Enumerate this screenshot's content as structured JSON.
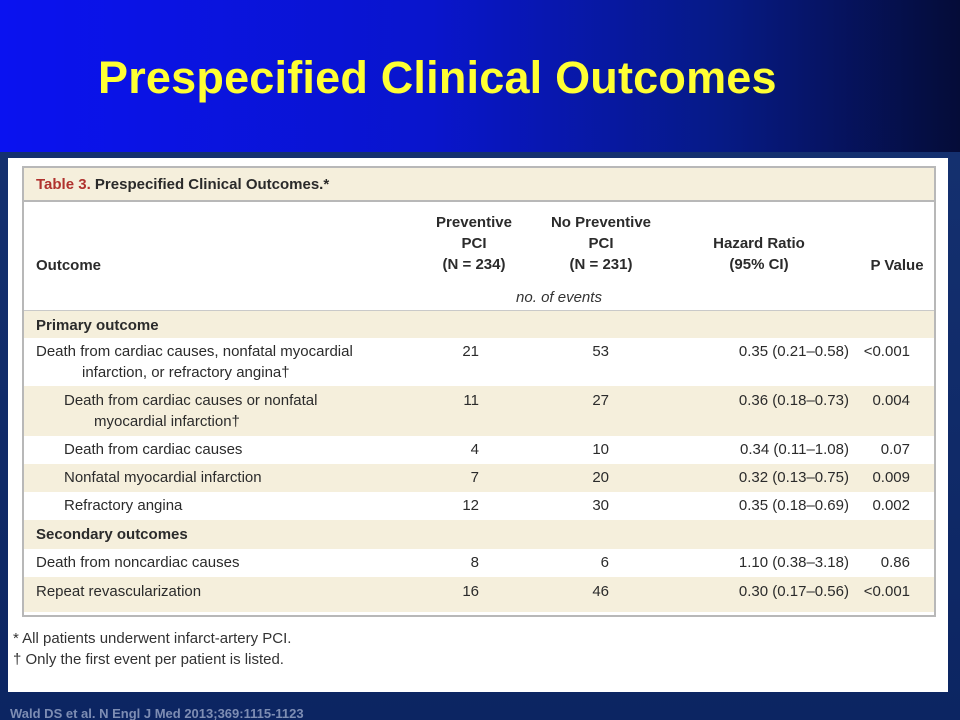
{
  "slide": {
    "title": "Prespecified Clinical Outcomes",
    "source": "Wald DS et al. N Engl J Med 2013;369:1115-1123"
  },
  "table": {
    "number_label": "Table 3.",
    "caption": "Prespecified Clinical Outcomes.*",
    "headers": {
      "outcome": "Outcome",
      "preventive": [
        "Preventive",
        "PCI",
        "(N = 234)"
      ],
      "no_preventive": [
        "No Preventive",
        "PCI",
        "(N = 231)"
      ],
      "hazard_ratio": [
        "Hazard Ratio",
        "(95% CI)"
      ],
      "p_value": "P Value"
    },
    "units": "no. of events",
    "sections": {
      "primary": "Primary outcome",
      "secondary": "Secondary outcomes"
    },
    "rows": [
      {
        "outcome": [
          "Death from cardiac causes, nonfatal myocardial",
          "infarction, or refractory angina†"
        ],
        "preventive": "21",
        "no_preventive": "53",
        "hr": "0.35 (0.21–0.58)",
        "p": "<0.001"
      },
      {
        "outcome": [
          "Death from cardiac causes or nonfatal",
          "myocardial infarction†"
        ],
        "preventive": "11",
        "no_preventive": "27",
        "hr": "0.36 (0.18–0.73)",
        "p": "0.004"
      },
      {
        "outcome": [
          "Death from cardiac causes"
        ],
        "preventive": "4",
        "no_preventive": "10",
        "hr": "0.34 (0.11–1.08)",
        "p": "0.07"
      },
      {
        "outcome": [
          "Nonfatal myocardial infarction"
        ],
        "preventive": "7",
        "no_preventive": "20",
        "hr": "0.32 (0.13–0.75)",
        "p": "0.009"
      },
      {
        "outcome": [
          "Refractory angina"
        ],
        "preventive": "12",
        "no_preventive": "30",
        "hr": "0.35 (0.18–0.69)",
        "p": "0.002"
      },
      {
        "outcome": [
          "Death from noncardiac causes"
        ],
        "preventive": "8",
        "no_preventive": "6",
        "hr": "1.10 (0.38–3.18)",
        "p": "0.86"
      },
      {
        "outcome": [
          "Repeat revascularization"
        ],
        "preventive": "16",
        "no_preventive": "46",
        "hr": "0.30 (0.17–0.56)",
        "p": "<0.001"
      }
    ],
    "footnotes": [
      "* All patients underwent infarct-artery PCI.",
      "† Only the first event per patient is listed."
    ]
  }
}
